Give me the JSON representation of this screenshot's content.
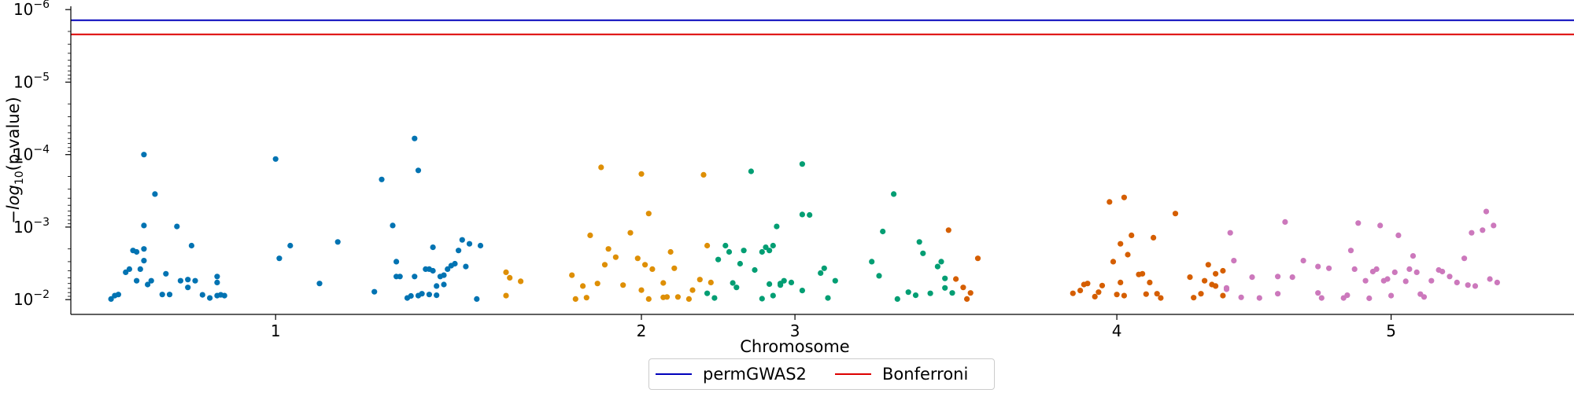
{
  "chart_data": {
    "type": "scatter",
    "title": "",
    "xlabel": "Chromosome",
    "ylabel": "−log₁₀(p-value)",
    "y_scale": "log",
    "y_inverted": true,
    "ylim": [
      0.016,
      9e-07
    ],
    "xlim": [
      0.44,
      4.55
    ],
    "grid": false,
    "legend_position": "bottom-center",
    "x_ticks": [
      {
        "value": 1.0,
        "label": "1"
      },
      {
        "value": 2.0,
        "label": "2"
      },
      {
        "value": 2.42,
        "label": "3"
      },
      {
        "value": 3.3,
        "label": "4"
      },
      {
        "value": 4.05,
        "label": "5"
      }
    ],
    "y_ticks": [
      {
        "value": 1e-06,
        "base": "10",
        "exp": "−6"
      },
      {
        "value": 1e-05,
        "base": "10",
        "exp": "−5"
      },
      {
        "value": 0.0001,
        "base": "10",
        "exp": "−4"
      },
      {
        "value": 0.001,
        "base": "10",
        "exp": "−3"
      },
      {
        "value": 0.01,
        "base": "10",
        "exp": "−2"
      }
    ],
    "thresholds": [
      {
        "name": "permGWAS2",
        "value": 1.4e-06,
        "color": "#0000bb"
      },
      {
        "name": "Bonferroni",
        "value": 2.2e-06,
        "color": "#dd0000"
      }
    ],
    "series": [
      {
        "color": "#0173b2",
        "points": [
          [
            0.55,
            0.0098
          ],
          [
            0.56,
            0.0088
          ],
          [
            0.57,
            0.0085
          ],
          [
            0.59,
            0.0042
          ],
          [
            0.6,
            0.0038
          ],
          [
            0.61,
            0.0021
          ],
          [
            0.62,
            0.0022
          ],
          [
            0.62,
            0.0055
          ],
          [
            0.63,
            0.0038
          ],
          [
            0.64,
            0.0029
          ],
          [
            0.64,
            0.002
          ],
          [
            0.64,
            0.00095
          ],
          [
            0.64,
            0.0001
          ],
          [
            0.65,
            0.0062
          ],
          [
            0.66,
            0.0055
          ],
          [
            0.67,
            0.00035
          ],
          [
            0.69,
            0.0085
          ],
          [
            0.7,
            0.0044
          ],
          [
            0.71,
            0.0085
          ],
          [
            0.73,
            0.00098
          ],
          [
            0.74,
            0.0055
          ],
          [
            0.76,
            0.0053
          ],
          [
            0.76,
            0.0068
          ],
          [
            0.77,
            0.0018
          ],
          [
            0.78,
            0.0055
          ],
          [
            0.8,
            0.0086
          ],
          [
            0.82,
            0.0095
          ],
          [
            0.84,
            0.0088
          ],
          [
            0.84,
            0.0048
          ],
          [
            0.84,
            0.0058
          ],
          [
            0.85,
            0.0086
          ],
          [
            0.86,
            0.0088
          ],
          [
            1.0,
            0.000115
          ],
          [
            1.01,
            0.0027
          ],
          [
            1.04,
            0.0018
          ],
          [
            1.12,
            0.006
          ],
          [
            1.17,
            0.0016
          ],
          [
            1.27,
            0.0078
          ],
          [
            1.29,
            0.00022
          ],
          [
            1.32,
            0.00095
          ],
          [
            1.33,
            0.0048
          ],
          [
            1.33,
            0.003
          ],
          [
            1.34,
            0.0048
          ],
          [
            1.36,
            0.0095
          ],
          [
            1.37,
            0.0089
          ],
          [
            1.38,
            0.0048
          ],
          [
            1.38,
            6e-05
          ],
          [
            1.39,
            0.000165
          ],
          [
            1.39,
            0.0088
          ],
          [
            1.4,
            0.0083
          ],
          [
            1.41,
            0.0038
          ],
          [
            1.42,
            0.0038
          ],
          [
            1.42,
            0.0085
          ],
          [
            1.43,
            0.0019
          ],
          [
            1.43,
            0.004
          ],
          [
            1.44,
            0.0065
          ],
          [
            1.44,
            0.0087
          ],
          [
            1.45,
            0.0048
          ],
          [
            1.46,
            0.0046
          ],
          [
            1.46,
            0.0062
          ],
          [
            1.47,
            0.0038
          ],
          [
            1.48,
            0.0034
          ],
          [
            1.49,
            0.0032
          ],
          [
            1.5,
            0.0021
          ],
          [
            1.51,
            0.0015
          ],
          [
            1.52,
            0.0035
          ],
          [
            1.53,
            0.0017
          ],
          [
            1.55,
            0.0098
          ],
          [
            1.56,
            0.0018
          ]
        ]
      },
      {
        "color": "#de8f05",
        "points": [
          [
            1.63,
            0.0042
          ],
          [
            1.63,
            0.0088
          ],
          [
            1.64,
            0.005
          ],
          [
            1.67,
            0.0056
          ],
          [
            1.81,
            0.0046
          ],
          [
            1.82,
            0.0098
          ],
          [
            1.84,
            0.0065
          ],
          [
            1.85,
            0.0094
          ],
          [
            1.86,
            0.0013
          ],
          [
            1.88,
            0.006
          ],
          [
            1.89,
            0.00015
          ],
          [
            1.9,
            0.0033
          ],
          [
            1.91,
            0.002
          ],
          [
            1.93,
            0.0026
          ],
          [
            1.95,
            0.0063
          ],
          [
            1.97,
            0.0012
          ],
          [
            1.99,
            0.0027
          ],
          [
            2.0,
            0.000185
          ],
          [
            2.0,
            0.0074
          ],
          [
            2.01,
            0.0033
          ],
          [
            2.02,
            0.00065
          ],
          [
            2.02,
            0.0098
          ],
          [
            2.03,
            0.0038
          ],
          [
            2.06,
            0.0093
          ],
          [
            2.06,
            0.0059
          ],
          [
            2.07,
            0.0092
          ],
          [
            2.08,
            0.0022
          ],
          [
            2.09,
            0.0037
          ],
          [
            2.1,
            0.0092
          ],
          [
            2.13,
            0.0098
          ],
          [
            2.14,
            0.0074
          ],
          [
            2.16,
            0.0053
          ],
          [
            2.17,
            0.00019
          ],
          [
            2.18,
            0.0018
          ],
          [
            2.19,
            0.0058
          ]
        ]
      },
      {
        "color": "#029e73",
        "points": [
          [
            2.18,
            0.0082
          ],
          [
            2.2,
            0.0095
          ],
          [
            2.21,
            0.0028
          ],
          [
            2.23,
            0.0018
          ],
          [
            2.24,
            0.0022
          ],
          [
            2.25,
            0.0059
          ],
          [
            2.26,
            0.0068
          ],
          [
            2.27,
            0.0032
          ],
          [
            2.28,
            0.0021
          ],
          [
            2.3,
            0.00017
          ],
          [
            2.31,
            0.0039
          ],
          [
            2.33,
            0.0022
          ],
          [
            2.33,
            0.0097
          ],
          [
            2.34,
            0.0019
          ],
          [
            2.35,
            0.0061
          ],
          [
            2.35,
            0.0021
          ],
          [
            2.36,
            0.0018
          ],
          [
            2.36,
            0.0088
          ],
          [
            2.37,
            0.00098
          ],
          [
            2.38,
            0.006
          ],
          [
            2.38,
            0.0063
          ],
          [
            2.39,
            0.0055
          ],
          [
            2.41,
            0.0058
          ],
          [
            2.44,
            0.00067
          ],
          [
            2.44,
            0.0075
          ],
          [
            2.44,
            0.000135
          ],
          [
            2.46,
            0.00068
          ],
          [
            2.49,
            0.0043
          ],
          [
            2.5,
            0.0037
          ],
          [
            2.51,
            0.0095
          ],
          [
            2.53,
            0.0055
          ],
          [
            2.63,
            0.003
          ],
          [
            2.65,
            0.0047
          ],
          [
            2.66,
            0.00115
          ],
          [
            2.69,
            0.00035
          ],
          [
            2.7,
            0.0098
          ],
          [
            2.73,
            0.0079
          ],
          [
            2.75,
            0.0087
          ],
          [
            2.76,
            0.0016
          ],
          [
            2.77,
            0.0023
          ],
          [
            2.79,
            0.0082
          ],
          [
            2.81,
            0.0035
          ],
          [
            2.82,
            0.003
          ],
          [
            2.83,
            0.0069
          ],
          [
            2.83,
            0.0051
          ],
          [
            2.85,
            0.0081
          ]
        ]
      },
      {
        "color": "#d55e00",
        "points": [
          [
            2.84,
            0.0011
          ],
          [
            2.86,
            0.0052
          ],
          [
            2.88,
            0.0068
          ],
          [
            2.89,
            0.0098
          ],
          [
            2.9,
            0.0081
          ],
          [
            2.92,
            0.0027
          ],
          [
            3.18,
            0.0082
          ],
          [
            3.2,
            0.0075
          ],
          [
            3.21,
            0.0062
          ],
          [
            3.22,
            0.006
          ],
          [
            3.24,
            0.0091
          ],
          [
            3.25,
            0.0079
          ],
          [
            3.26,
            0.0064
          ],
          [
            3.28,
            0.00045
          ],
          [
            3.29,
            0.003
          ],
          [
            3.3,
            0.0085
          ],
          [
            3.31,
            0.0058
          ],
          [
            3.31,
            0.0017
          ],
          [
            3.32,
            0.0088
          ],
          [
            3.32,
            0.00039
          ],
          [
            3.33,
            0.0024
          ],
          [
            3.34,
            0.0013
          ],
          [
            3.36,
            0.0045
          ],
          [
            3.37,
            0.0044
          ],
          [
            3.38,
            0.0084
          ],
          [
            3.39,
            0.0058
          ],
          [
            3.4,
            0.0014
          ],
          [
            3.41,
            0.0083
          ],
          [
            3.42,
            0.0095
          ],
          [
            3.46,
            0.00065
          ],
          [
            3.5,
            0.0049
          ],
          [
            3.51,
            0.0094
          ],
          [
            3.53,
            0.0083
          ],
          [
            3.54,
            0.0055
          ],
          [
            3.55,
            0.0033
          ],
          [
            3.56,
            0.0062
          ],
          [
            3.57,
            0.0044
          ],
          [
            3.59,
            0.004
          ],
          [
            3.57,
            0.0065
          ],
          [
            3.59,
            0.0088
          ]
        ]
      },
      {
        "color": "#cc78bc",
        "points": [
          [
            3.6,
            0.0072
          ],
          [
            3.6,
            0.0069
          ],
          [
            3.61,
            0.0012
          ],
          [
            3.62,
            0.0029
          ],
          [
            3.64,
            0.0093
          ],
          [
            3.67,
            0.0049
          ],
          [
            3.69,
            0.0095
          ],
          [
            3.74,
            0.0048
          ],
          [
            3.74,
            0.0083
          ],
          [
            3.76,
            0.00085
          ],
          [
            3.78,
            0.0049
          ],
          [
            3.81,
            0.0029
          ],
          [
            3.85,
            0.0035
          ],
          [
            3.85,
            0.0081
          ],
          [
            3.86,
            0.0095
          ],
          [
            3.88,
            0.0037
          ],
          [
            3.92,
            0.0095
          ],
          [
            3.93,
            0.0087
          ],
          [
            3.94,
            0.0021
          ],
          [
            3.95,
            0.0038
          ],
          [
            3.96,
            0.00088
          ],
          [
            3.98,
            0.0055
          ],
          [
            3.99,
            0.0096
          ],
          [
            4.0,
            0.0041
          ],
          [
            4.01,
            0.0038
          ],
          [
            4.02,
            0.00095
          ],
          [
            4.03,
            0.0055
          ],
          [
            4.04,
            0.0052
          ],
          [
            4.05,
            0.0088
          ],
          [
            4.06,
            0.0042
          ],
          [
            4.07,
            0.0013
          ],
          [
            4.09,
            0.0056
          ],
          [
            4.1,
            0.0038
          ],
          [
            4.11,
            0.0025
          ],
          [
            4.12,
            0.0042
          ],
          [
            4.13,
            0.0084
          ],
          [
            4.14,
            0.0092
          ],
          [
            4.16,
            0.0055
          ],
          [
            4.18,
            0.0039
          ],
          [
            4.19,
            0.0041
          ],
          [
            4.21,
            0.0048
          ],
          [
            4.23,
            0.0058
          ],
          [
            4.25,
            0.0027
          ],
          [
            4.26,
            0.0063
          ],
          [
            4.27,
            0.0012
          ],
          [
            4.28,
            0.0065
          ],
          [
            4.3,
            0.0011
          ],
          [
            4.31,
            0.00061
          ],
          [
            4.32,
            0.0052
          ],
          [
            4.33,
            0.00095
          ],
          [
            4.34,
            0.0058
          ]
        ]
      }
    ]
  },
  "legend": {
    "items": [
      {
        "label": "permGWAS2",
        "color": "#0000bb"
      },
      {
        "label": "Bonferroni",
        "color": "#dd0000"
      }
    ]
  }
}
